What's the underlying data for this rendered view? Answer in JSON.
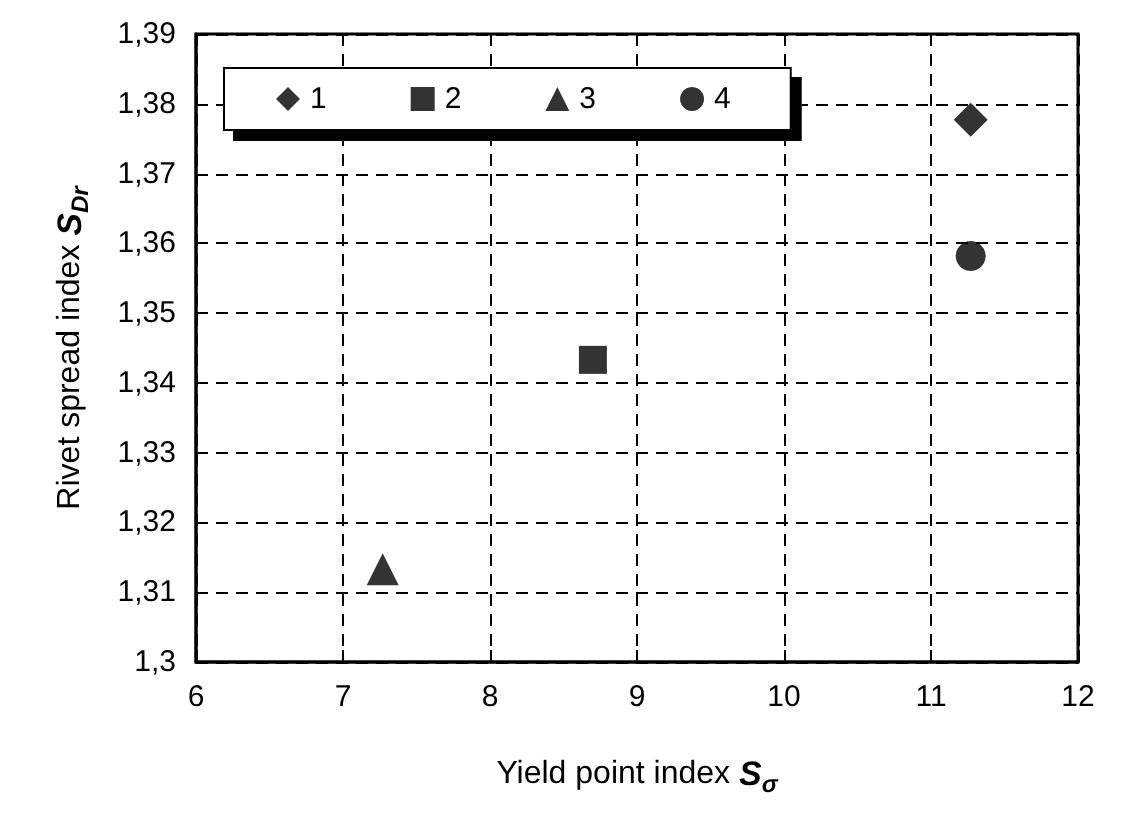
{
  "chart_data": {
    "type": "scatter",
    "xlabel": "Yield point index S$_{σ}$",
    "ylabel": "Rivet spread index S$_{Dr}$",
    "series": [
      {
        "name": "1",
        "color": "#000000",
        "marker": "diamond",
        "x": [
          11.27
        ],
        "values": [
          1.3777
        ]
      },
      {
        "name": "2",
        "color": "#000000",
        "marker": "square",
        "x": [
          8.7
        ],
        "values": [
          1.3433
        ]
      },
      {
        "name": "3",
        "color": "#000000",
        "marker": "triangle",
        "x": [
          7.27
        ],
        "values": [
          1.3133
        ]
      },
      {
        "name": "4",
        "color": "#000000",
        "marker": "circle",
        "x": [
          11.27
        ],
        "values": [
          1.3582
        ]
      }
    ],
    "xlim": [
      6,
      12
    ],
    "xticks": [
      6,
      7,
      8,
      9,
      10,
      11,
      12
    ],
    "ylim": [
      1.3,
      1.39
    ],
    "yticks": [
      {
        "value": 1.3,
        "label": "1,3"
      },
      {
        "value": 1.31,
        "label": "1,31"
      },
      {
        "value": 1.32,
        "label": "1,32"
      },
      {
        "value": 1.33,
        "label": "1,33"
      },
      {
        "value": 1.34,
        "label": "1,34"
      },
      {
        "value": 1.35,
        "label": "1,35"
      },
      {
        "value": 1.36,
        "label": "1,36"
      },
      {
        "value": 1.37,
        "label": "1,37"
      },
      {
        "value": 1.38,
        "label": "1,38"
      },
      {
        "value": 1.39,
        "label": "1,39"
      }
    ],
    "grid": true,
    "legend": "top left"
  }
}
